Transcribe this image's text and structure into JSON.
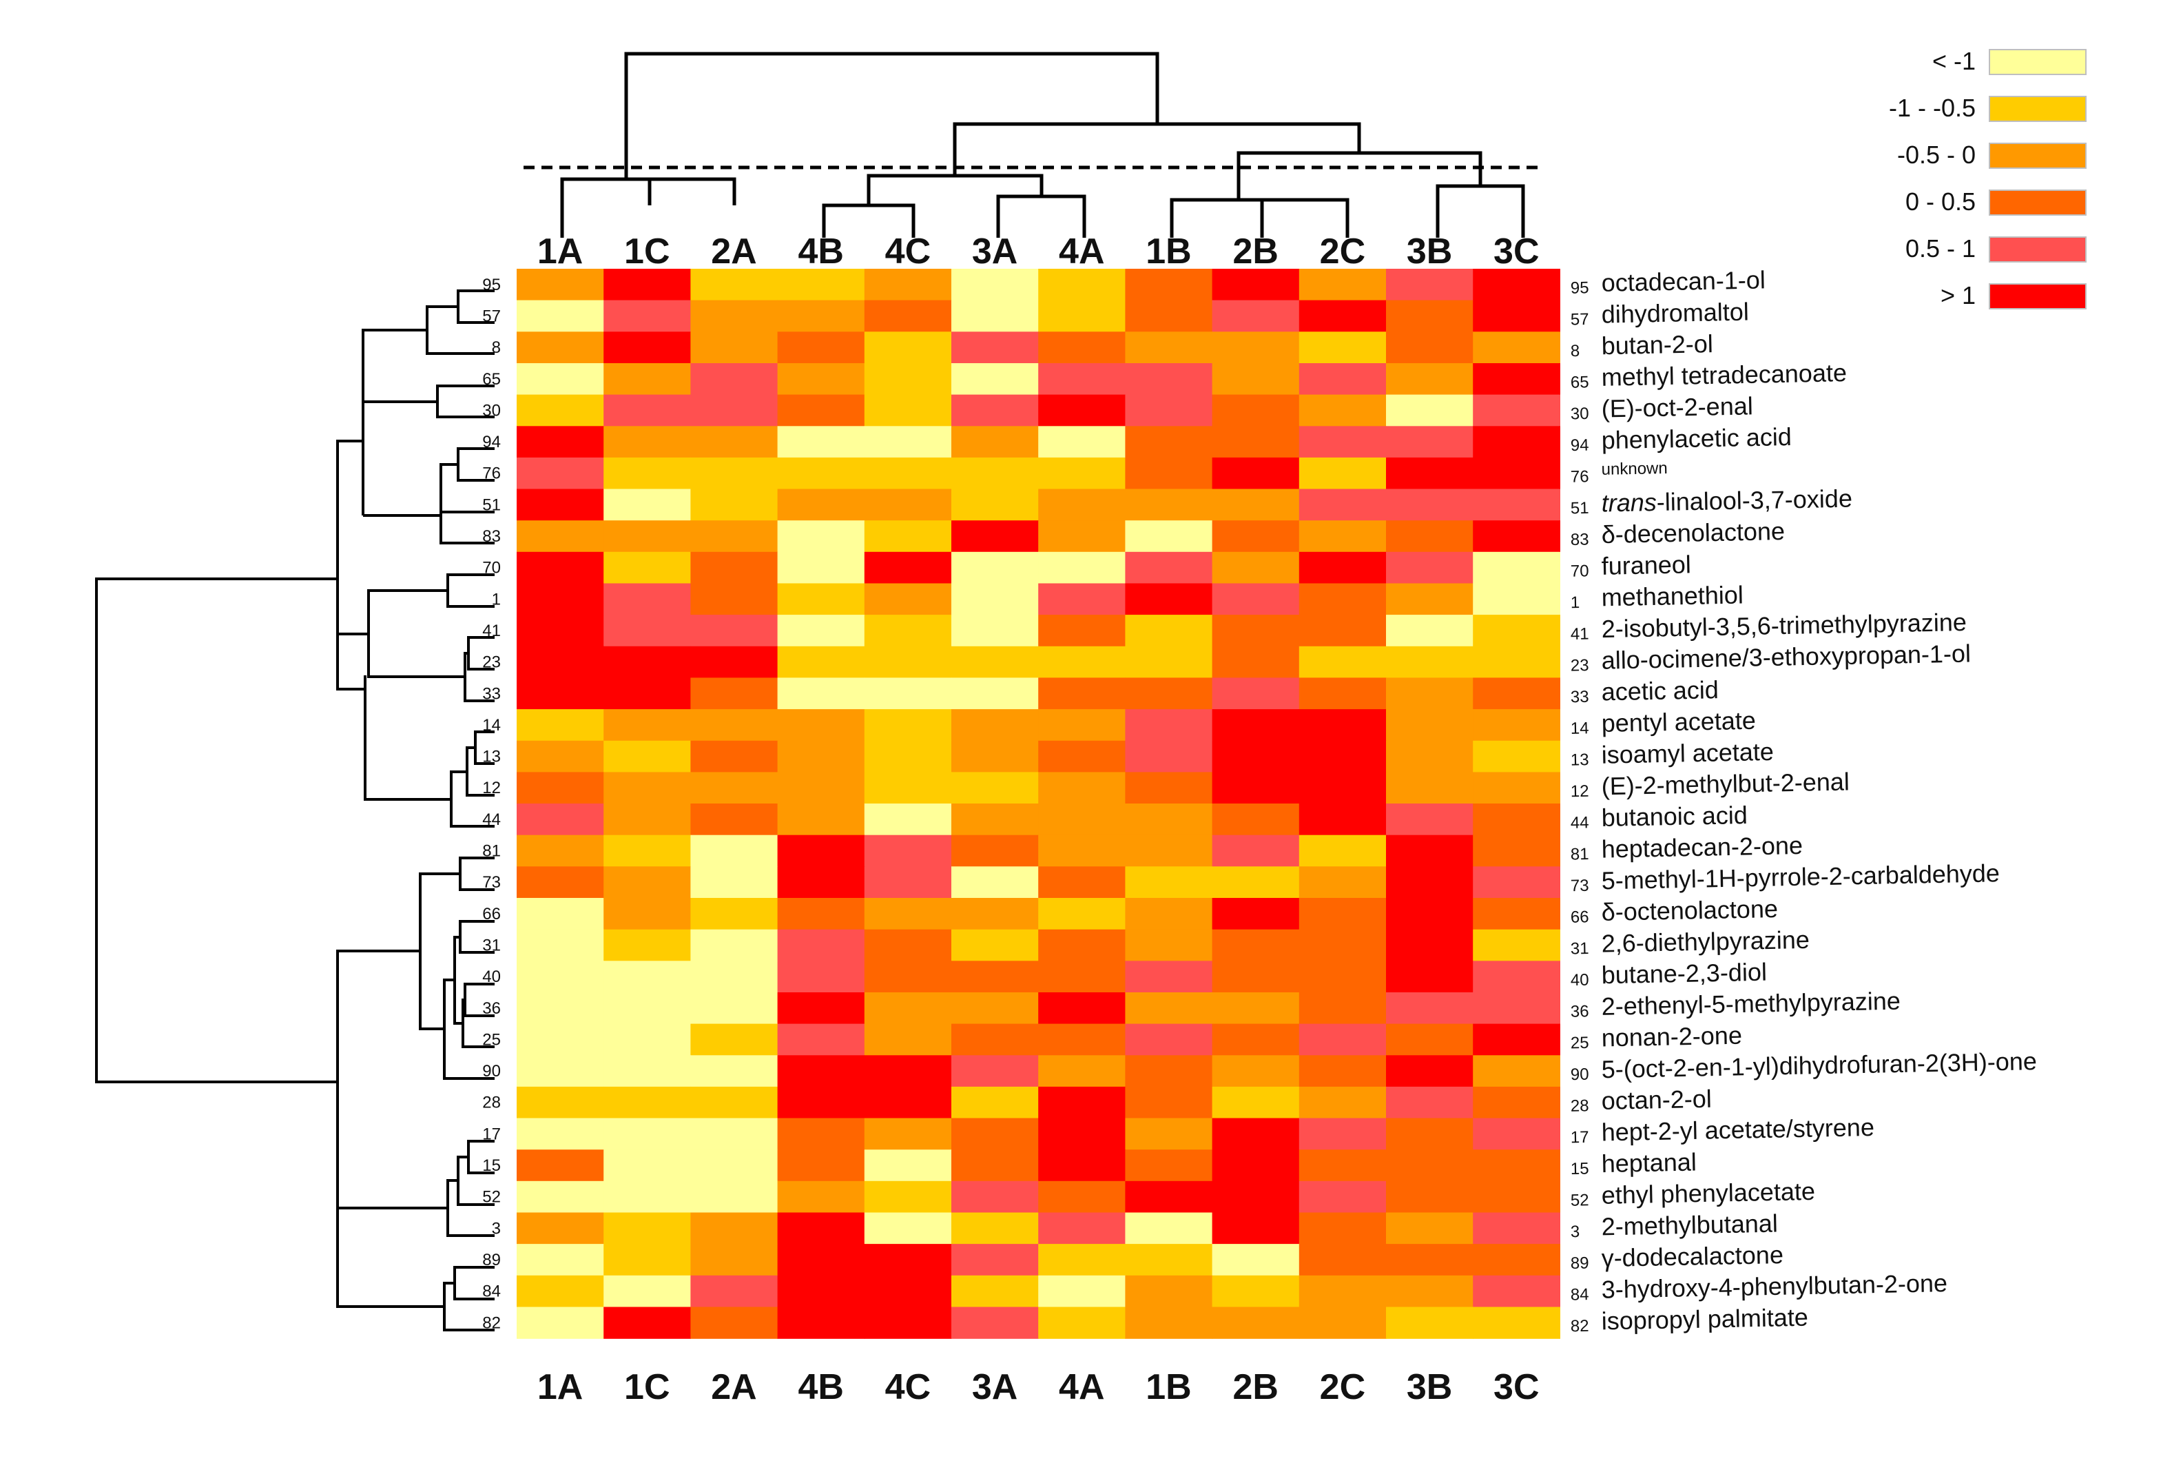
{
  "chart_data": {
    "type": "heatmap",
    "title": "",
    "columns": [
      "1A",
      "1C",
      "2A",
      "4B",
      "4C",
      "3A",
      "4A",
      "1B",
      "2B",
      "2C",
      "3B",
      "3C"
    ],
    "legend": [
      {
        "label": "< -1",
        "color": "#FFFF99"
      },
      {
        "label": "-1 - -0.5",
        "color": "#FFCC00"
      },
      {
        "label": "-0.5 - 0",
        "color": "#FF9900"
      },
      {
        "label": "0 - 0.5",
        "color": "#FF6600"
      },
      {
        "label": "0.5 - 1",
        "color": "#FF5050"
      },
      {
        "label": "> 1",
        "color": "#FF0000"
      }
    ],
    "rows": [
      {
        "id": "95",
        "name": "octadecan-1-ol",
        "values": [
          2,
          5,
          1,
          1,
          2,
          0,
          1,
          3,
          5,
          2,
          4,
          5
        ]
      },
      {
        "id": "57",
        "name": "dihydromaltol",
        "values": [
          0,
          4,
          2,
          2,
          3,
          0,
          1,
          3,
          4,
          5,
          3,
          5
        ]
      },
      {
        "id": "8",
        "name": "butan-2-ol",
        "values": [
          2,
          5,
          2,
          3,
          1,
          4,
          3,
          2,
          2,
          1,
          3,
          2
        ]
      },
      {
        "id": "65",
        "name": "methyl tetradecanoate",
        "values": [
          0,
          2,
          4,
          2,
          1,
          0,
          4,
          4,
          2,
          4,
          2,
          5
        ]
      },
      {
        "id": "30",
        "name": "(E)-oct-2-enal",
        "values": [
          1,
          4,
          4,
          3,
          1,
          4,
          5,
          4,
          3,
          2,
          0,
          4
        ]
      },
      {
        "id": "94",
        "name": "phenylacetic acid",
        "values": [
          5,
          2,
          2,
          0,
          0,
          2,
          0,
          3,
          3,
          4,
          4,
          5
        ]
      },
      {
        "id": "76",
        "name": "unknown",
        "small": true,
        "values": [
          4,
          1,
          1,
          1,
          1,
          1,
          1,
          3,
          5,
          1,
          5,
          5
        ]
      },
      {
        "id": "51",
        "name": "trans-linalool-3,7-oxide",
        "italic_prefix": "trans",
        "values": [
          5,
          0,
          1,
          2,
          2,
          1,
          2,
          2,
          2,
          4,
          4,
          4
        ]
      },
      {
        "id": "83",
        "name": "δ-decenolactone",
        "values": [
          2,
          2,
          2,
          0,
          1,
          5,
          2,
          0,
          3,
          2,
          3,
          5
        ]
      },
      {
        "id": "70",
        "name": "furaneol",
        "values": [
          5,
          1,
          3,
          0,
          5,
          0,
          0,
          4,
          2,
          5,
          4,
          0
        ]
      },
      {
        "id": "1",
        "name": "methanethiol",
        "values": [
          5,
          4,
          3,
          1,
          2,
          0,
          4,
          5,
          4,
          3,
          2,
          0
        ]
      },
      {
        "id": "41",
        "name": "2-isobutyl-3,5,6-trimethylpyrazine",
        "values": [
          5,
          4,
          4,
          0,
          1,
          0,
          3,
          1,
          3,
          3,
          0,
          1
        ]
      },
      {
        "id": "23",
        "name": "allo-ocimene/3-ethoxypropan-1-ol",
        "values": [
          5,
          5,
          5,
          1,
          1,
          1,
          1,
          1,
          3,
          1,
          1,
          1
        ]
      },
      {
        "id": "33",
        "name": "acetic acid",
        "values": [
          5,
          5,
          3,
          0,
          0,
          0,
          3,
          3,
          4,
          3,
          2,
          3
        ]
      },
      {
        "id": "14",
        "name": "pentyl acetate",
        "values": [
          1,
          2,
          2,
          2,
          1,
          2,
          2,
          4,
          5,
          5,
          2,
          2
        ]
      },
      {
        "id": "13",
        "name": "isoamyl acetate",
        "values": [
          2,
          1,
          3,
          2,
          1,
          2,
          3,
          4,
          5,
          5,
          2,
          1
        ]
      },
      {
        "id": "12",
        "name": "(E)-2-methylbut-2-enal",
        "values": [
          3,
          2,
          2,
          2,
          1,
          1,
          2,
          3,
          5,
          5,
          2,
          2
        ]
      },
      {
        "id": "44",
        "name": "butanoic acid",
        "values": [
          4,
          2,
          3,
          2,
          0,
          2,
          2,
          2,
          3,
          5,
          4,
          3
        ]
      },
      {
        "id": "81",
        "name": "heptadecan-2-one",
        "values": [
          2,
          1,
          0,
          5,
          4,
          3,
          2,
          2,
          4,
          1,
          5,
          3
        ]
      },
      {
        "id": "73",
        "name": "5-methyl-1H-pyrrole-2-carbaldehyde",
        "values": [
          3,
          2,
          0,
          5,
          4,
          0,
          3,
          1,
          1,
          2,
          5,
          4
        ]
      },
      {
        "id": "66",
        "name": "δ-octenolactone",
        "values": [
          0,
          2,
          1,
          3,
          2,
          2,
          1,
          2,
          5,
          3,
          5,
          3
        ]
      },
      {
        "id": "31",
        "name": "2,6-diethylpyrazine",
        "values": [
          0,
          1,
          0,
          4,
          3,
          1,
          3,
          2,
          3,
          3,
          5,
          1
        ]
      },
      {
        "id": "40",
        "name": "butane-2,3-diol",
        "values": [
          0,
          0,
          0,
          4,
          3,
          3,
          3,
          4,
          3,
          3,
          5,
          4
        ]
      },
      {
        "id": "36",
        "name": "2-ethenyl-5-methylpyrazine",
        "values": [
          0,
          0,
          0,
          5,
          2,
          2,
          5,
          2,
          2,
          3,
          4,
          4
        ]
      },
      {
        "id": "25",
        "name": "nonan-2-one",
        "values": [
          0,
          0,
          1,
          4,
          2,
          3,
          3,
          4,
          3,
          4,
          3,
          5
        ]
      },
      {
        "id": "90",
        "name": "5-(oct-2-en-1-yl)dihydrofuran-2(3H)-one",
        "values": [
          0,
          0,
          0,
          5,
          5,
          4,
          2,
          3,
          2,
          3,
          5,
          2
        ]
      },
      {
        "id": "28",
        "name": "octan-2-ol",
        "values": [
          1,
          1,
          1,
          5,
          5,
          1,
          5,
          3,
          1,
          2,
          4,
          3
        ]
      },
      {
        "id": "17",
        "name": "hept-2-yl acetate/styrene",
        "values": [
          0,
          0,
          0,
          3,
          2,
          3,
          5,
          2,
          5,
          4,
          3,
          4
        ]
      },
      {
        "id": "15",
        "name": "heptanal",
        "values": [
          3,
          0,
          0,
          3,
          0,
          3,
          5,
          3,
          5,
          3,
          3,
          3
        ]
      },
      {
        "id": "52",
        "name": "ethyl phenylacetate",
        "values": [
          0,
          0,
          0,
          2,
          1,
          4,
          3,
          5,
          5,
          4,
          3,
          3
        ]
      },
      {
        "id": "3",
        "name": "2-methylbutanal",
        "values": [
          2,
          1,
          2,
          5,
          0,
          1,
          4,
          0,
          5,
          3,
          2,
          4
        ]
      },
      {
        "id": "89",
        "name": "γ-dodecalactone",
        "values": [
          0,
          1,
          2,
          5,
          5,
          4,
          1,
          1,
          0,
          3,
          3,
          3
        ]
      },
      {
        "id": "84",
        "name": "3-hydroxy-4-phenylbutan-2-one",
        "values": [
          1,
          0,
          4,
          5,
          5,
          1,
          0,
          2,
          1,
          2,
          2,
          4
        ]
      },
      {
        "id": "82",
        "name": "isopropyl palmitate",
        "values": [
          0,
          5,
          3,
          5,
          5,
          4,
          1,
          2,
          2,
          2,
          1,
          1
        ]
      }
    ]
  }
}
